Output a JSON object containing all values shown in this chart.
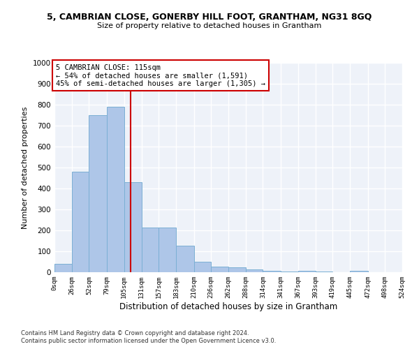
{
  "title": "5, CAMBRIAN CLOSE, GONERBY HILL FOOT, GRANTHAM, NG31 8GQ",
  "subtitle": "Size of property relative to detached houses in Grantham",
  "xlabel": "Distribution of detached houses by size in Grantham",
  "ylabel": "Number of detached properties",
  "footnote1": "Contains HM Land Registry data © Crown copyright and database right 2024.",
  "footnote2": "Contains public sector information licensed under the Open Government Licence v3.0.",
  "annotation_title": "5 CAMBRIAN CLOSE: 115sqm",
  "annotation_line1": "← 54% of detached houses are smaller (1,591)",
  "annotation_line2": "45% of semi-detached houses are larger (1,305) →",
  "property_size": 115,
  "bar_edges": [
    0,
    26,
    52,
    79,
    105,
    131,
    157,
    183,
    210,
    236,
    262,
    288,
    314,
    341,
    367,
    393,
    419,
    445,
    472,
    498,
    524
  ],
  "bar_heights": [
    40,
    480,
    750,
    790,
    430,
    215,
    215,
    128,
    50,
    27,
    25,
    13,
    8,
    5,
    7,
    2,
    1,
    8,
    1,
    1
  ],
  "bar_color": "#aec6e8",
  "bar_edge_color": "#7bafd4",
  "vline_color": "#cc0000",
  "annotation_box_color": "#cc0000",
  "background_color": "#eef2f9",
  "grid_color": "#ffffff",
  "ylim": [
    0,
    1000
  ],
  "yticks": [
    0,
    100,
    200,
    300,
    400,
    500,
    600,
    700,
    800,
    900,
    1000
  ]
}
